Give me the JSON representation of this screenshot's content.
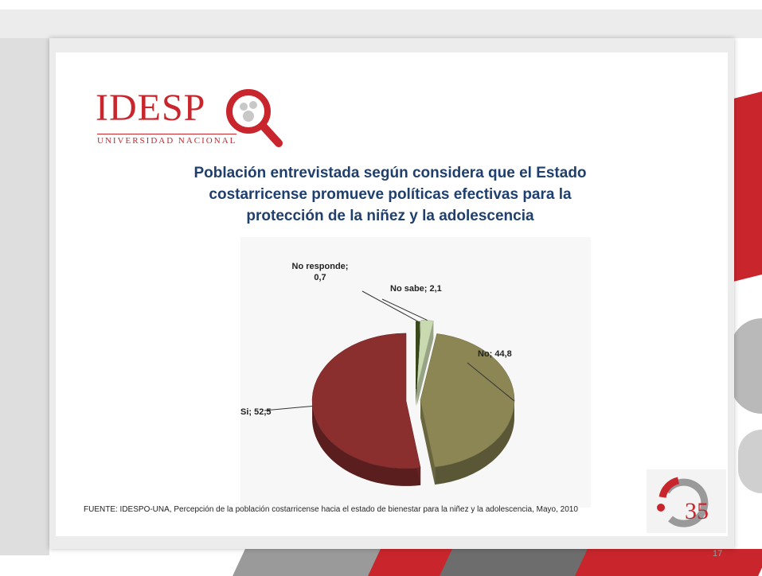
{
  "logo": {
    "name": "IDESP",
    "subtitle": "UNIVERSIDAD NACIONAL"
  },
  "badge": {
    "number": "35"
  },
  "page_number": "17",
  "source": "FUENTE: IDESPO-UNA, Percepción de la población costarricense hacia el estado de bienestar para la niñez y la adolescencia, Mayo, 2010",
  "chart_data": {
    "type": "pie",
    "title": "Población entrevistada según considera que el Estado costarricense promueve políticas efectivas para la protección de la niñez y la adolescencia",
    "slices": [
      {
        "label": "No responde; 0,7",
        "value": 0.7,
        "color": "#3a4a1a"
      },
      {
        "label": "No sabe; 2,1",
        "value": 2.1,
        "color": "#c9d9b0"
      },
      {
        "label": "No; 44,8",
        "value": 44.8,
        "color": "#8b8654"
      },
      {
        "label": "Si; 52,5",
        "value": 52.5,
        "color": "#8b2e2e"
      }
    ]
  }
}
